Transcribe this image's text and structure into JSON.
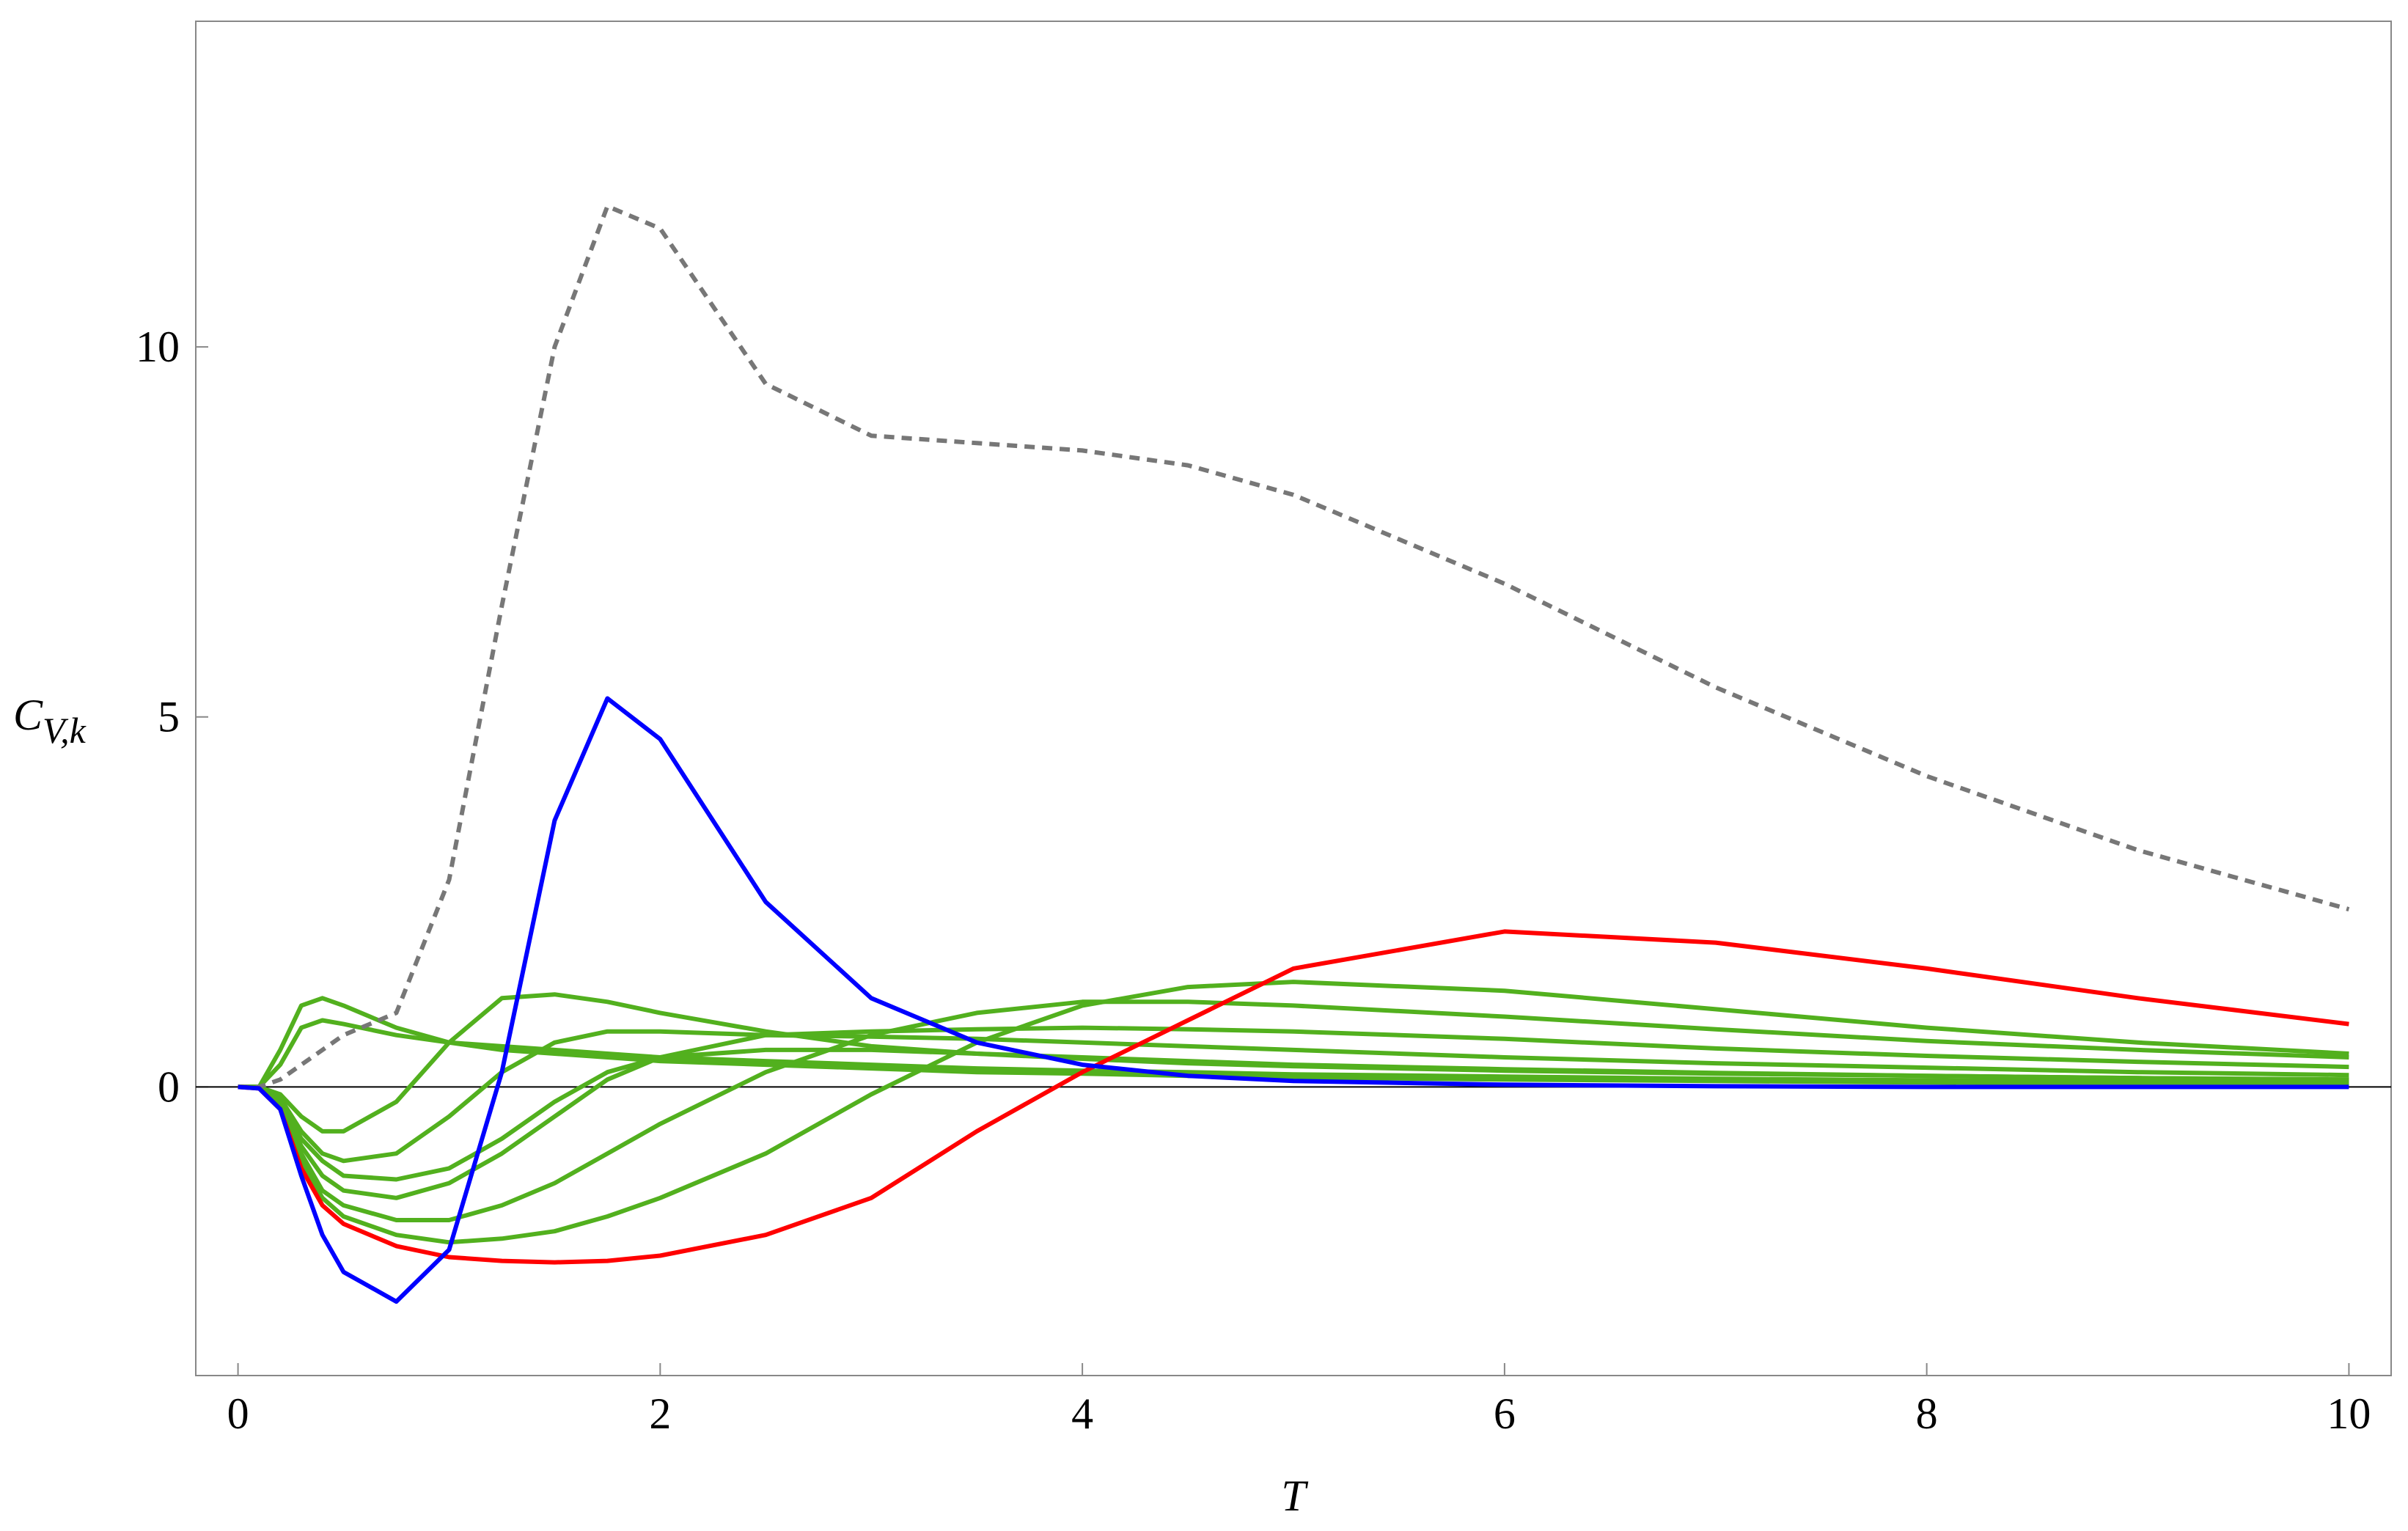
{
  "chart_data": {
    "type": "line",
    "xlabel": "T",
    "ylabel": "C",
    "ylabel_sub": "V,k",
    "xlim": [
      -0.2,
      10.2
    ],
    "ylim": [
      -3.9,
      14.4
    ],
    "xticks": [
      0,
      2,
      4,
      6,
      8,
      10
    ],
    "yticks": [
      0,
      5,
      10
    ],
    "x": [
      0,
      0.1,
      0.2,
      0.3,
      0.4,
      0.5,
      0.75,
      1,
      1.25,
      1.5,
      1.75,
      2,
      2.5,
      3,
      3.5,
      4,
      4.5,
      5,
      6,
      7,
      8,
      9,
      10
    ],
    "series": [
      {
        "color": "#52b01e",
        "values": [
          0,
          0,
          0.5,
          1.1,
          1.2,
          1.1,
          0.8,
          0.6,
          0.5,
          0.45,
          0.4,
          0.35,
          0.3,
          0.25,
          0.2,
          0.18,
          0.15,
          0.13,
          0.1,
          0.08,
          0.06,
          0.05,
          0.04
        ]
      },
      {
        "color": "#52b01e",
        "values": [
          0,
          0,
          0.3,
          0.8,
          0.9,
          0.85,
          0.7,
          0.6,
          0.55,
          0.5,
          0.45,
          0.4,
          0.35,
          0.3,
          0.25,
          0.22,
          0.2,
          0.17,
          0.14,
          0.11,
          0.09,
          0.07,
          0.06
        ]
      },
      {
        "color": "#52b01e",
        "values": [
          0,
          0,
          -0.1,
          -0.4,
          -0.6,
          -0.6,
          -0.2,
          0.6,
          1.2,
          1.25,
          1.15,
          1.0,
          0.75,
          0.55,
          0.45,
          0.38,
          0.32,
          0.28,
          0.22,
          0.18,
          0.15,
          0.12,
          0.1
        ]
      },
      {
        "color": "#52b01e",
        "values": [
          0,
          0,
          -0.15,
          -0.6,
          -0.9,
          -1.0,
          -0.9,
          -0.4,
          0.2,
          0.6,
          0.75,
          0.75,
          0.7,
          0.68,
          0.65,
          0.6,
          0.55,
          0.5,
          0.4,
          0.32,
          0.26,
          0.2,
          0.16
        ]
      },
      {
        "color": "#52b01e",
        "values": [
          0,
          0,
          -0.2,
          -0.8,
          -1.2,
          -1.4,
          -1.5,
          -1.3,
          -0.9,
          -0.4,
          0.1,
          0.4,
          0.7,
          0.75,
          0.78,
          0.8,
          0.78,
          0.75,
          0.65,
          0.52,
          0.42,
          0.34,
          0.27
        ]
      },
      {
        "color": "#52b01e",
        "values": [
          0,
          0,
          -0.25,
          -0.9,
          -1.4,
          -1.6,
          -1.8,
          -1.8,
          -1.6,
          -1.3,
          -0.9,
          -0.5,
          0.2,
          0.7,
          1.0,
          1.15,
          1.15,
          1.1,
          0.95,
          0.78,
          0.62,
          0.5,
          0.4
        ]
      },
      {
        "color": "#52b01e",
        "values": [
          0,
          0,
          -0.28,
          -1.0,
          -1.5,
          -1.75,
          -2.0,
          -2.1,
          -2.05,
          -1.95,
          -1.75,
          -1.5,
          -0.9,
          -0.1,
          0.6,
          1.1,
          1.35,
          1.42,
          1.3,
          1.05,
          0.8,
          0.6,
          0.45
        ]
      },
      {
        "color": "#52b01e",
        "values": [
          0,
          0,
          -0.2,
          -0.7,
          -1.0,
          -1.2,
          -1.25,
          -1.1,
          -0.7,
          -0.2,
          0.2,
          0.4,
          0.5,
          0.5,
          0.45,
          0.4,
          0.35,
          0.3,
          0.24,
          0.19,
          0.15,
          0.12,
          0.1
        ]
      },
      {
        "color": "#777777",
        "dashed": true,
        "values": [
          0,
          0,
          0.1,
          0.3,
          0.5,
          0.7,
          1.0,
          2.8,
          6.5,
          10,
          11.9,
          11.6,
          9.5,
          8.8,
          8.7,
          8.6,
          8.4,
          8.0,
          6.8,
          5.4,
          4.2,
          3.2,
          2.4
        ]
      },
      {
        "color": "#ff0000",
        "values": [
          0,
          -0.02,
          -0.3,
          -1.1,
          -1.6,
          -1.85,
          -2.15,
          -2.3,
          -2.35,
          -2.37,
          -2.35,
          -2.28,
          -2.0,
          -1.5,
          -0.6,
          0.2,
          0.9,
          1.6,
          2.1,
          1.95,
          1.6,
          1.2,
          0.85
        ]
      },
      {
        "color": "#0000ff",
        "values": [
          0,
          -0.02,
          -0.3,
          -1.2,
          -2.0,
          -2.5,
          -2.9,
          -2.2,
          0.2,
          3.6,
          5.25,
          4.7,
          2.5,
          1.2,
          0.6,
          0.3,
          0.15,
          0.08,
          0.03,
          0.01,
          0,
          0,
          0
        ]
      }
    ]
  }
}
